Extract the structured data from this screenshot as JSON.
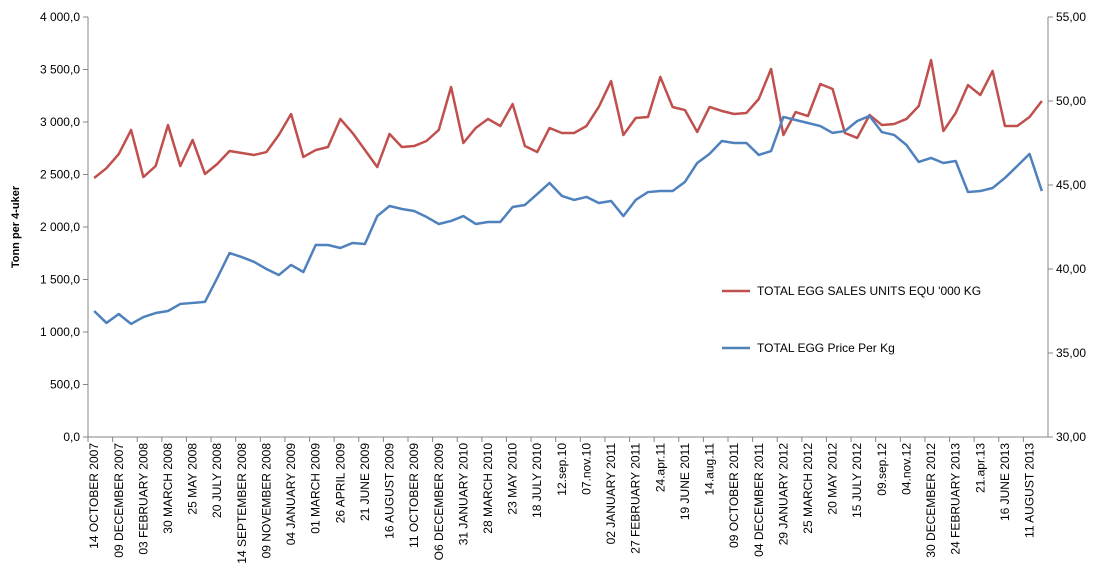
{
  "chart_data": {
    "type": "line",
    "y_label": "Tonn per 4-uker",
    "categories": [
      "14 OCTOBER 2007",
      null,
      "09 DECEMBER 2007",
      null,
      "03 FEBRUARY 2008",
      null,
      "30 MARCH 2008",
      null,
      "25 MAY 2008",
      null,
      "20 JULY 2008",
      null,
      "14 SEPTEMBER 2008",
      null,
      "09 NOVEMBER 2008",
      null,
      "04 JANUARY 2009",
      null,
      "01 MARCH 2009",
      null,
      "26 APRIL 2009",
      null,
      "21 JUNE 2009",
      null,
      "16 AUGUST 2009",
      null,
      "11 OCTOBER 2009",
      null,
      "O6 DECEMBER 2009",
      null,
      "31 JANUARY 2010",
      null,
      "28 MARCH 2010",
      null,
      "23 MAY 2010",
      null,
      "18 JULY 2010",
      null,
      "12.sep.10",
      null,
      "07.nov.10",
      null,
      "02 JANUARY 2011",
      null,
      "27 FEBRUARY 2011",
      null,
      "24.apr.11",
      null,
      "19 JUNE 2011",
      null,
      "14.aug.11",
      null,
      "09 OCTOBER 2011",
      null,
      "04 DECEMBER 2011",
      null,
      "29 JANUARY 2012",
      null,
      "25 MARCH 2012",
      null,
      "20 MAY 2012",
      null,
      "15 JULY 2012",
      null,
      "09.sep.12",
      null,
      "04.nov.12",
      null,
      "30 DECEMBER 2012",
      null,
      "24 FEBRUARY 2013",
      null,
      "21.apr.13",
      null,
      "16 JUNE 2013",
      null,
      "11 AUGUST 2013",
      null
    ],
    "series": [
      {
        "name": "TOTAL EGG SALES UNITS EQU '000 KG",
        "color": "#c0504d",
        "values": [
          2467,
          2560,
          2695,
          2924,
          2476,
          2581,
          2971,
          2581,
          2829,
          2505,
          2600,
          2724,
          2705,
          2686,
          2714,
          2876,
          3076,
          2667,
          2733,
          2762,
          3029,
          2895,
          2733,
          2571,
          2886,
          2762,
          2771,
          2819,
          2924,
          3333,
          2800,
          2943,
          3029,
          2962,
          3171,
          2771,
          2714,
          2943,
          2895,
          2895,
          2962,
          3143,
          3390,
          2876,
          3038,
          3048,
          3429,
          3143,
          3114,
          2905,
          3143,
          3105,
          3076,
          3086,
          3219,
          3505,
          2876,
          3095,
          3057,
          3362,
          3314,
          2895,
          2848,
          3067,
          2971,
          2981,
          3029,
          3152,
          3590,
          2914,
          3086,
          3352,
          3257,
          3486,
          2962,
          2962,
          3048,
          3200
        ]
      },
      {
        "name": "TOTAL EGG Price Per Kg",
        "color": "#4f81bd",
        "axis": "y2",
        "values": [
          37.5,
          36.79,
          37.32,
          36.73,
          37.14,
          37.38,
          37.5,
          37.92,
          37.98,
          38.04,
          39.46,
          40.95,
          40.71,
          40.42,
          40.0,
          39.64,
          40.24,
          39.82,
          41.43,
          41.43,
          41.25,
          41.55,
          41.49,
          43.15,
          43.75,
          43.57,
          43.45,
          43.1,
          42.68,
          42.86,
          43.15,
          42.68,
          42.8,
          42.8,
          43.69,
          43.81,
          44.46,
          45.12,
          44.35,
          44.11,
          44.29,
          43.93,
          44.05,
          43.15,
          44.11,
          44.58,
          44.64,
          44.64,
          45.18,
          46.31,
          46.85,
          47.62,
          47.5,
          47.5,
          46.79,
          47.02,
          49.05,
          48.87,
          48.69,
          48.51,
          48.1,
          48.21,
          48.81,
          49.11,
          48.15,
          47.98,
          47.38,
          46.37,
          46.61,
          46.31,
          46.43,
          44.58,
          44.64,
          44.82,
          45.42,
          46.13,
          46.85,
          44.64
        ]
      }
    ],
    "ylim": [
      0,
      4000
    ],
    "yticks": [
      {
        "value": 0,
        "label": "0,0"
      },
      {
        "value": 500,
        "label": "500,0"
      },
      {
        "value": 1000,
        "label": "1 000,0"
      },
      {
        "value": 1500,
        "label": "1 500,0"
      },
      {
        "value": 2000,
        "label": "2 000,0"
      },
      {
        "value": 2500,
        "label": "2 500,0"
      },
      {
        "value": 3000,
        "label": "3 000,0"
      },
      {
        "value": 3500,
        "label": "3 500,0"
      },
      {
        "value": 4000,
        "label": "4 000,0"
      }
    ],
    "y2lim": [
      30,
      55
    ],
    "y2ticks": [
      {
        "value": 30,
        "label": "30,00"
      },
      {
        "value": 35,
        "label": "35,00"
      },
      {
        "value": 40,
        "label": "40,00"
      },
      {
        "value": 45,
        "label": "45,00"
      },
      {
        "value": 50,
        "label": "50,00"
      },
      {
        "value": 55,
        "label": "55,00"
      }
    ],
    "grid": false,
    "legend": "right"
  }
}
